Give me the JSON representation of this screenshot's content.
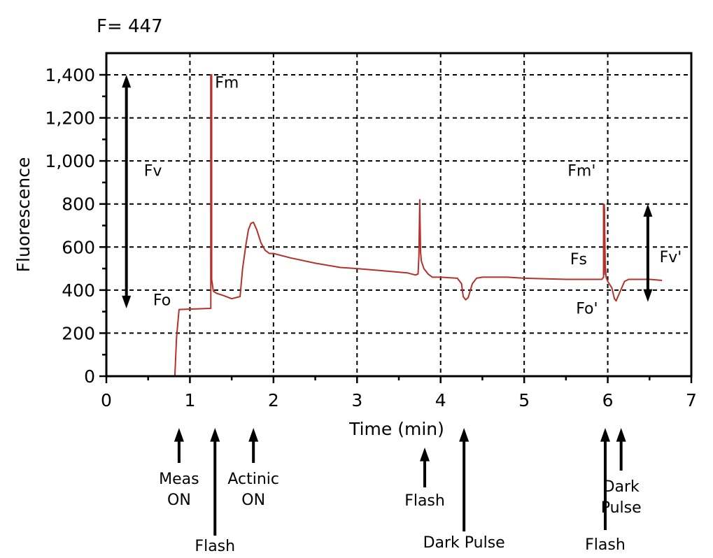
{
  "header": {
    "readout": "F= 447"
  },
  "chart_data": {
    "type": "line",
    "xlabel": "Time (min)",
    "ylabel": "Fluorescence",
    "xlim": [
      0,
      7
    ],
    "ylim": [
      0,
      1400
    ],
    "x_ticks": [
      0,
      1,
      2,
      3,
      4,
      5,
      6,
      7
    ],
    "x_tick_labels": [
      "0",
      "1",
      "2",
      "3",
      "4",
      "5",
      "6",
      "7"
    ],
    "y_ticks": [
      0,
      200,
      400,
      600,
      800,
      1000,
      1200,
      1400
    ],
    "y_tick_labels": [
      "0",
      "200",
      "400",
      "600",
      "800",
      "1,000",
      "1,200",
      "1,400"
    ],
    "grid": true,
    "line_color": "#b5312b",
    "series": [
      {
        "x": [
          0.82,
          0.84,
          0.87,
          1.25,
          1.25,
          1.26,
          1.26,
          1.28,
          1.32,
          1.4,
          1.5,
          1.6,
          1.63,
          1.67,
          1.7,
          1.73,
          1.76,
          1.8,
          1.85,
          1.9,
          1.95,
          2.0,
          2.2,
          2.5,
          2.8,
          3.0,
          3.3,
          3.6,
          3.7,
          3.73,
          3.74,
          3.75,
          3.75,
          3.76,
          3.77,
          3.8,
          3.85,
          3.9,
          4.0,
          4.2,
          4.25,
          4.27,
          4.3,
          4.33,
          4.38,
          4.43,
          4.5,
          4.8,
          5.0,
          5.5,
          5.8,
          5.93,
          5.95,
          5.95,
          5.96,
          5.97,
          5.98,
          6.0,
          6.05,
          6.08,
          6.1,
          6.15,
          6.2,
          6.25,
          6.3,
          6.5,
          6.65
        ],
        "y": [
          0,
          180,
          310,
          315,
          1400,
          1400,
          450,
          395,
          385,
          375,
          360,
          370,
          500,
          610,
          680,
          710,
          715,
          680,
          620,
          585,
          570,
          570,
          550,
          525,
          505,
          500,
          490,
          480,
          470,
          475,
          560,
          820,
          800,
          575,
          535,
          500,
          475,
          460,
          460,
          455,
          430,
          370,
          355,
          365,
          430,
          455,
          460,
          460,
          455,
          450,
          450,
          450,
          460,
          800,
          780,
          520,
          460,
          440,
          410,
          360,
          350,
          395,
          440,
          450,
          450,
          450,
          445
        ]
      }
    ],
    "annotations": [
      {
        "text": "Fm",
        "x": 1.3,
        "y": 1340
      },
      {
        "text": "Fv",
        "x": 0.45,
        "y": 930
      },
      {
        "text": "Fo",
        "x": 0.56,
        "y": 330
      },
      {
        "text": "Fm'",
        "x": 5.52,
        "y": 930
      },
      {
        "text": "Fs",
        "x": 5.55,
        "y": 520
      },
      {
        "text": "Fo'",
        "x": 5.62,
        "y": 290
      },
      {
        "text": "Fv'",
        "x": 6.62,
        "y": 530
      }
    ],
    "range_arrows": [
      {
        "label": "Fv",
        "x": 0.24,
        "y_from": 1400,
        "y_to": 315
      },
      {
        "label": "Fv'",
        "x": 6.48,
        "y_from": 800,
        "y_to": 345
      }
    ],
    "events": [
      {
        "label_lines": [
          "Meas",
          "ON"
        ],
        "x": 0.87
      },
      {
        "label_lines": [
          "Flash"
        ],
        "x": 1.3
      },
      {
        "label_lines": [
          "Actinic",
          "ON"
        ],
        "x": 1.76
      },
      {
        "label_lines": [
          "Flash"
        ],
        "x": 3.81
      },
      {
        "label_lines": [
          "Dark Pulse"
        ],
        "x": 4.28
      },
      {
        "label_lines": [
          "Flash"
        ],
        "x": 5.97
      },
      {
        "label_lines": [
          "Dark",
          "Pulse"
        ],
        "x": 6.16
      }
    ]
  }
}
